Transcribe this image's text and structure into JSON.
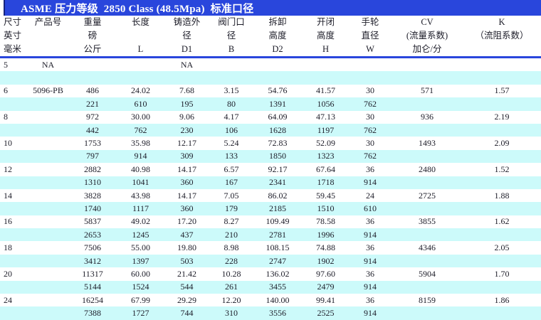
{
  "title": "ASME 压力等级  2850 Class (48.5Mpa)  标准口径",
  "colors": {
    "title_bg": "#2946DC",
    "rule_color": "#2946DC",
    "row_alt": "#CCFAFA",
    "text": "#1c1c28"
  },
  "table": {
    "columns": [
      {
        "id": "size",
        "lines": [
          "尺寸",
          "英寸",
          "毫米"
        ],
        "align": "left"
      },
      {
        "id": "product",
        "lines": [
          "产品号",
          "",
          ""
        ],
        "align": "center"
      },
      {
        "id": "weight",
        "lines": [
          "重量",
          "磅",
          "公斤"
        ],
        "align": "center"
      },
      {
        "id": "length",
        "lines": [
          "长度",
          "",
          "L"
        ],
        "align": "center"
      },
      {
        "id": "cast-od",
        "lines": [
          "铸造外",
          "径",
          "D1"
        ],
        "align": "center"
      },
      {
        "id": "bore",
        "lines": [
          "阀门口",
          "径",
          "B"
        ],
        "align": "center"
      },
      {
        "id": "removal-height",
        "lines": [
          "拆卸",
          "高度",
          "D2"
        ],
        "align": "center"
      },
      {
        "id": "open-close-height",
        "lines": [
          "开闭",
          "高度",
          "H"
        ],
        "align": "center"
      },
      {
        "id": "handwheel-dia",
        "lines": [
          "手轮",
          "直径",
          "W"
        ],
        "align": "center"
      },
      {
        "id": "cv",
        "lines": [
          "CV",
          "(流量系数)",
          "加仑/分"
        ],
        "align": "center"
      },
      {
        "id": "k",
        "lines": [
          "K",
          "（流阻系数）",
          ""
        ],
        "align": "center"
      }
    ],
    "rows": [
      [
        "5",
        "NA",
        "",
        "",
        "NA",
        "",
        "",
        "",
        "",
        "",
        ""
      ],
      [
        "",
        "",
        "",
        "",
        "",
        "",
        "",
        "",
        "",
        "",
        ""
      ],
      [
        "6",
        "5096-PB",
        "486",
        "24.02",
        "7.68",
        "3.15",
        "54.76",
        "41.57",
        "30",
        "571",
        "1.57"
      ],
      [
        "",
        "",
        "221",
        "610",
        "195",
        "80",
        "1391",
        "1056",
        "762",
        "",
        ""
      ],
      [
        "8",
        "",
        "972",
        "30.00",
        "9.06",
        "4.17",
        "64.09",
        "47.13",
        "30",
        "936",
        "2.19"
      ],
      [
        "",
        "",
        "442",
        "762",
        "230",
        "106",
        "1628",
        "1197",
        "762",
        "",
        ""
      ],
      [
        "10",
        "",
        "1753",
        "35.98",
        "12.17",
        "5.24",
        "72.83",
        "52.09",
        "30",
        "1493",
        "2.09"
      ],
      [
        "",
        "",
        "797",
        "914",
        "309",
        "133",
        "1850",
        "1323",
        "762",
        "",
        ""
      ],
      [
        "12",
        "",
        "2882",
        "40.98",
        "14.17",
        "6.57",
        "92.17",
        "67.64",
        "36",
        "2480",
        "1.52"
      ],
      [
        "",
        "",
        "1310",
        "1041",
        "360",
        "167",
        "2341",
        "1718",
        "914",
        "",
        ""
      ],
      [
        "14",
        "",
        "3828",
        "43.98",
        "14.17",
        "7.05",
        "86.02",
        "59.45",
        "24",
        "2725",
        "1.88"
      ],
      [
        "",
        "",
        "1740",
        "1117",
        "360",
        "179",
        "2185",
        "1510",
        "610",
        "",
        ""
      ],
      [
        "16",
        "",
        "5837",
        "49.02",
        "17.20",
        "8.27",
        "109.49",
        "78.58",
        "36",
        "3855",
        "1.62"
      ],
      [
        "",
        "",
        "2653",
        "1245",
        "437",
        "210",
        "2781",
        "1996",
        "914",
        "",
        ""
      ],
      [
        "18",
        "",
        "7506",
        "55.00",
        "19.80",
        "8.98",
        "108.15",
        "74.88",
        "36",
        "4346",
        "2.05"
      ],
      [
        "",
        "",
        "3412",
        "1397",
        "503",
        "228",
        "2747",
        "1902",
        "914",
        "",
        ""
      ],
      [
        "20",
        "",
        "11317",
        "60.00",
        "21.42",
        "10.28",
        "136.02",
        "97.60",
        "36",
        "5904",
        "1.70"
      ],
      [
        "",
        "",
        "5144",
        "1524",
        "544",
        "261",
        "3455",
        "2479",
        "914",
        "",
        ""
      ],
      [
        "24",
        "",
        "16254",
        "67.99",
        "29.29",
        "12.20",
        "140.00",
        "99.41",
        "36",
        "8159",
        "1.86"
      ],
      [
        "",
        "",
        "7388",
        "1727",
        "744",
        "310",
        "3556",
        "2525",
        "914",
        "",
        ""
      ]
    ]
  }
}
